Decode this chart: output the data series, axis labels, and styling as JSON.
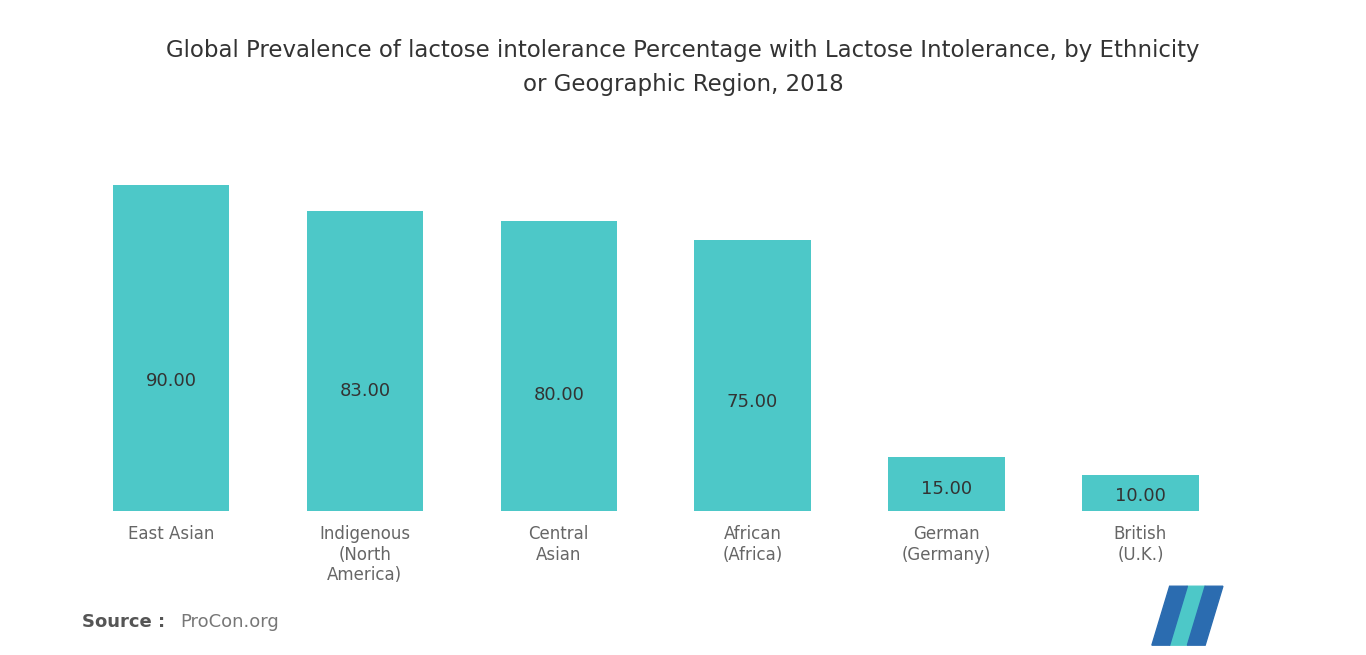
{
  "title_line1": "Global Prevalence of lactose intolerance Percentage with Lactose Intolerance, by Ethnicity",
  "title_line2": "or Geographic Region, 2018",
  "categories": [
    "East Asian",
    "Indigenous\n(North\nAmerica)",
    "Central\nAsian",
    "African\n(Africa)",
    "German\n(Germany)",
    "British\n(U.K.)"
  ],
  "values": [
    90.0,
    83.0,
    80.0,
    75.0,
    15.0,
    10.0
  ],
  "bar_color": "#4DC8C8",
  "label_color": "#666666",
  "value_label_color": "#333333",
  "title_color": "#333333",
  "background_color": "#ffffff",
  "source_bold": "Source :",
  "source_rest": "ProCon.org",
  "ylim": [
    0,
    105
  ],
  "bar_width": 0.6,
  "title_fontsize": 16.5,
  "axis_label_fontsize": 12,
  "value_fontsize": 13
}
